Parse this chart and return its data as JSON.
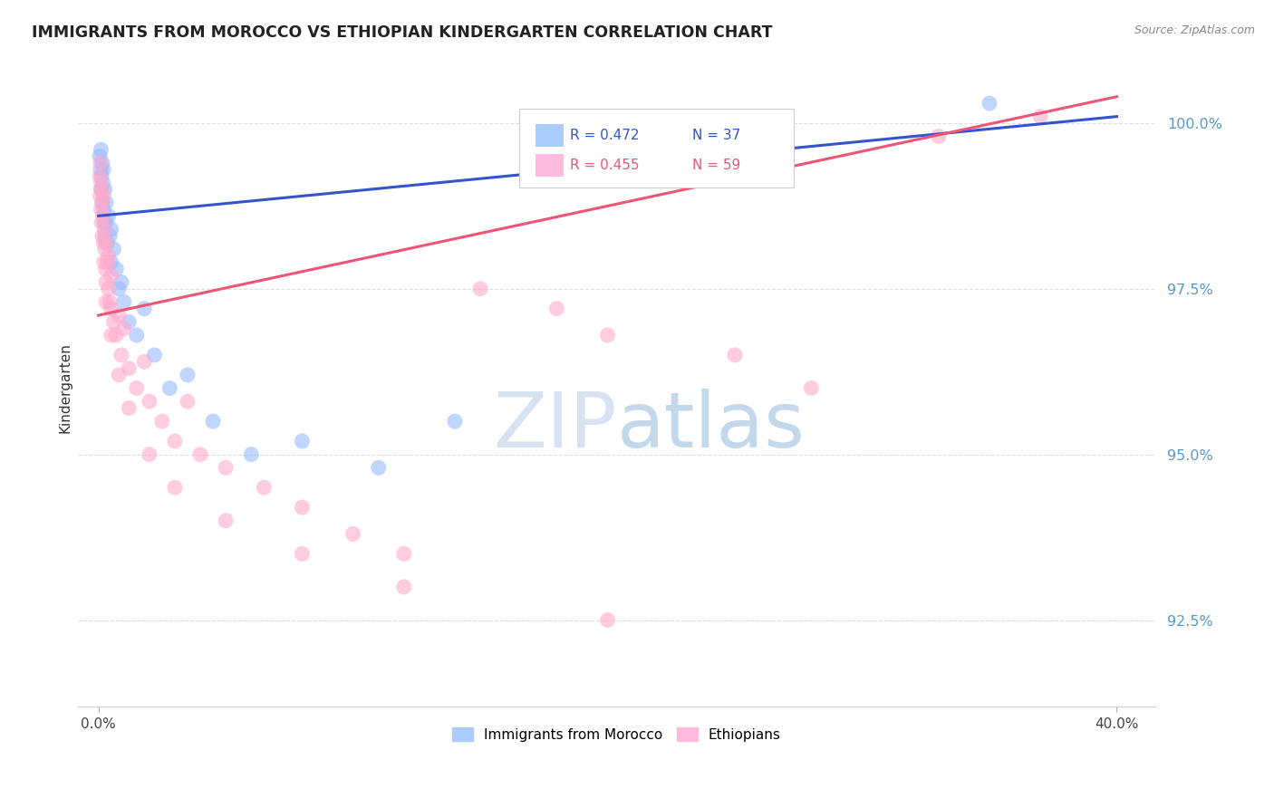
{
  "title": "IMMIGRANTS FROM MOROCCO VS ETHIOPIAN KINDERGARTEN CORRELATION CHART",
  "source": "Source: ZipAtlas.com",
  "ylabel": "Kindergarten",
  "yticks": [
    92.5,
    95.0,
    97.5,
    100.0
  ],
  "ytick_labels": [
    "92.5%",
    "95.0%",
    "97.5%",
    "100.0%"
  ],
  "xlim": [
    0.0,
    40.0
  ],
  "ylim": [
    91.2,
    100.8
  ],
  "legend_r1": "R = 0.472",
  "legend_n1": "N = 37",
  "legend_r2": "R = 0.455",
  "legend_n2": "N = 59",
  "legend_label1": "Immigrants from Morocco",
  "legend_label2": "Ethiopians",
  "blue_color": "#99bbff",
  "pink_color": "#ffaacc",
  "blue_line_color": "#3355cc",
  "pink_line_color": "#ee5577",
  "blue_legend_color": "#aaccff",
  "pink_legend_color": "#ffbbdd",
  "watermark_color": "#dce8f5",
  "background_color": "#ffffff",
  "grid_color": "#dddddd",
  "ytick_color": "#5599cc",
  "title_color": "#222222",
  "source_color": "#888888",
  "morocco_x": [
    0.05,
    0.08,
    0.1,
    0.1,
    0.12,
    0.15,
    0.15,
    0.18,
    0.2,
    0.2,
    0.22,
    0.25,
    0.25,
    0.3,
    0.3,
    0.35,
    0.4,
    0.45,
    0.5,
    0.5,
    0.6,
    0.7,
    0.8,
    0.9,
    1.0,
    1.2,
    1.5,
    1.8,
    2.2,
    2.8,
    3.5,
    4.5,
    6.0,
    8.0,
    11.0,
    14.0,
    35.0
  ],
  "morocco_y": [
    99.5,
    99.3,
    99.6,
    99.0,
    99.2,
    99.4,
    98.8,
    99.1,
    98.7,
    99.3,
    98.5,
    99.0,
    98.3,
    98.8,
    98.5,
    98.2,
    98.6,
    98.3,
    98.4,
    97.9,
    98.1,
    97.8,
    97.5,
    97.6,
    97.3,
    97.0,
    96.8,
    97.2,
    96.5,
    96.0,
    96.2,
    95.5,
    95.0,
    95.2,
    94.8,
    95.5,
    100.3
  ],
  "ethiopian_x": [
    0.05,
    0.07,
    0.08,
    0.1,
    0.1,
    0.12,
    0.12,
    0.15,
    0.15,
    0.18,
    0.2,
    0.2,
    0.22,
    0.25,
    0.25,
    0.28,
    0.3,
    0.3,
    0.35,
    0.4,
    0.4,
    0.45,
    0.5,
    0.5,
    0.6,
    0.7,
    0.8,
    0.9,
    1.0,
    1.2,
    1.5,
    1.8,
    2.0,
    2.5,
    3.0,
    3.5,
    4.0,
    5.0,
    6.5,
    8.0,
    10.0,
    12.0,
    15.0,
    18.0,
    20.0,
    25.0,
    28.0,
    33.0,
    37.0,
    0.3,
    0.5,
    0.8,
    1.2,
    2.0,
    3.0,
    5.0,
    8.0,
    12.0,
    20.0
  ],
  "ethiopian_y": [
    99.2,
    98.9,
    99.4,
    98.7,
    99.1,
    98.5,
    99.0,
    98.3,
    98.8,
    98.6,
    98.2,
    98.9,
    97.9,
    98.4,
    98.1,
    97.8,
    98.2,
    97.6,
    97.9,
    97.5,
    98.0,
    97.3,
    97.7,
    97.2,
    97.0,
    96.8,
    97.1,
    96.5,
    96.9,
    96.3,
    96.0,
    96.4,
    95.8,
    95.5,
    95.2,
    95.8,
    95.0,
    94.8,
    94.5,
    94.2,
    93.8,
    93.5,
    97.5,
    97.2,
    96.8,
    96.5,
    96.0,
    99.8,
    100.1,
    97.3,
    96.8,
    96.2,
    95.7,
    95.0,
    94.5,
    94.0,
    93.5,
    93.0,
    92.5
  ],
  "morocco_line_x": [
    0.0,
    40.0
  ],
  "morocco_line_y": [
    98.6,
    100.1
  ],
  "ethiopian_line_x": [
    0.0,
    40.0
  ],
  "ethiopian_line_y": [
    97.1,
    100.4
  ]
}
